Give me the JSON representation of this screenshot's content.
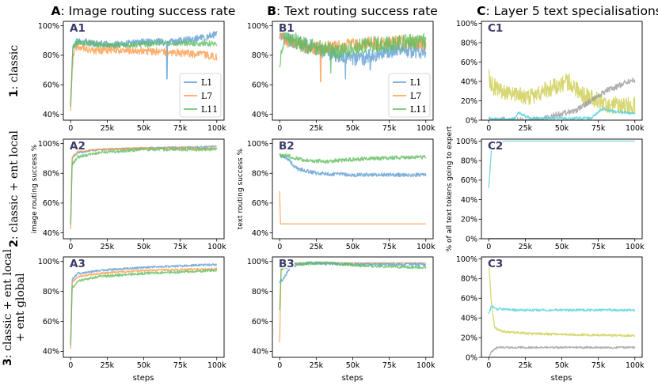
{
  "column_titles": [
    {
      "letter": "A",
      "text": ": Image routing success rate"
    },
    {
      "letter": "B",
      "text": ": Text routing success rate"
    },
    {
      "letter": "C",
      "text": ": Layer 5 text specialisations"
    }
  ],
  "row_labels": [
    {
      "num": "1",
      "lines": [
        ": classic"
      ]
    },
    {
      "num": "2",
      "lines": [
        ": classic + ent local"
      ]
    },
    {
      "num": "3",
      "lines": [
        ": classic + ent local",
        "+ ent global"
      ]
    }
  ],
  "axis_labels": {
    "A_ylabel": "image routing success %",
    "B_ylabel": "text routing success %",
    "C_ylabel": "% of all text tokens going to expert",
    "xlabel": "steps"
  },
  "colors": {
    "L1": "#5b9bd0",
    "L7": "#ff9a45",
    "L11": "#5cbd5c",
    "cyan": "#4fd0dc",
    "olive": "#cccc4a",
    "gray": "#9a9a9a"
  },
  "chart_data": [
    {
      "panel": "A1",
      "type": "line",
      "ylim": [
        36,
        103
      ],
      "yticks": [
        "40%",
        "60%",
        "80%",
        "100%"
      ],
      "xticks": [
        "0",
        "25k",
        "50k",
        "75k",
        "100k"
      ],
      "xlim": [
        0,
        100000
      ],
      "legend": [
        "L1",
        "L7",
        "L11"
      ],
      "legend_position": "lower-right",
      "series": [
        {
          "name": "L1",
          "color": "L1",
          "noise": 2.4,
          "points": [
            [
              0,
              48
            ],
            [
              1500,
              86
            ],
            [
              5000,
              90
            ],
            [
              15000,
              88
            ],
            [
              30000,
              87
            ],
            [
              50000,
              89
            ],
            [
              70000,
              89
            ],
            [
              85000,
              91
            ],
            [
              100000,
              94
            ]
          ],
          "dips": [
            [
              66000,
              64
            ]
          ]
        },
        {
          "name": "L7",
          "color": "L7",
          "noise": 2.6,
          "points": [
            [
              0,
              44
            ],
            [
              1500,
              80
            ],
            [
              5000,
              86
            ],
            [
              15000,
              83
            ],
            [
              30000,
              84
            ],
            [
              50000,
              83
            ],
            [
              70000,
              82
            ],
            [
              85000,
              81
            ],
            [
              100000,
              79
            ]
          ],
          "dips": [
            [
              1200,
              72
            ]
          ]
        },
        {
          "name": "L11",
          "color": "L11",
          "noise": 1.8,
          "points": [
            [
              0,
              46
            ],
            [
              1500,
              86
            ],
            [
              5000,
              89
            ],
            [
              20000,
              87
            ],
            [
              40000,
              87
            ],
            [
              60000,
              88
            ],
            [
              80000,
              88
            ],
            [
              100000,
              88
            ]
          ],
          "dips": []
        }
      ]
    },
    {
      "panel": "B1",
      "type": "line",
      "ylim": [
        36,
        103
      ],
      "yticks": [
        "40%",
        "60%",
        "80%",
        "100%"
      ],
      "xticks": [
        "0",
        "25k",
        "50k",
        "75k",
        "100k"
      ],
      "xlim": [
        0,
        100000
      ],
      "legend": [
        "L1",
        "L7",
        "L11"
      ],
      "legend_position": "lower-right",
      "series": [
        {
          "name": "L1",
          "color": "L1",
          "noise": 5,
          "points": [
            [
              0,
              96
            ],
            [
              5000,
              91
            ],
            [
              20000,
              86
            ],
            [
              40000,
              80
            ],
            [
              55000,
              77
            ],
            [
              70000,
              82
            ],
            [
              85000,
              84
            ],
            [
              100000,
              82
            ]
          ],
          "dips": [
            [
              45000,
              64
            ],
            [
              62000,
              70
            ]
          ]
        },
        {
          "name": "L7",
          "color": "L7",
          "noise": 4.5,
          "points": [
            [
              0,
              95
            ],
            [
              5000,
              90
            ],
            [
              20000,
              85
            ],
            [
              40000,
              86
            ],
            [
              60000,
              88
            ],
            [
              80000,
              89
            ],
            [
              100000,
              88
            ]
          ],
          "dips": [
            [
              28000,
              62
            ]
          ]
        },
        {
          "name": "L11",
          "color": "L11",
          "noise": 5.5,
          "points": [
            [
              0,
              76
            ],
            [
              3000,
              93
            ],
            [
              20000,
              86
            ],
            [
              40000,
              83
            ],
            [
              60000,
              87
            ],
            [
              80000,
              88
            ],
            [
              100000,
              90
            ]
          ],
          "dips": [
            [
              35000,
              68
            ]
          ]
        }
      ]
    },
    {
      "panel": "C1",
      "type": "line",
      "ylim": [
        0,
        102
      ],
      "yticks": [
        "0%",
        "20%",
        "40%",
        "60%",
        "80%",
        "100%"
      ],
      "xticks": [
        "0",
        "25k",
        "50k",
        "75k",
        "100k"
      ],
      "xlim": [
        0,
        100000
      ],
      "series": [
        {
          "color": "olive",
          "noise": 9,
          "points": [
            [
              0,
              45
            ],
            [
              3000,
              35
            ],
            [
              15000,
              25
            ],
            [
              30000,
              25
            ],
            [
              45000,
              35
            ],
            [
              55000,
              40
            ],
            [
              65000,
              25
            ],
            [
              75000,
              20
            ],
            [
              85000,
              15
            ],
            [
              100000,
              15
            ]
          ],
          "dips": []
        },
        {
          "color": "gray",
          "noise": 3,
          "points": [
            [
              0,
              0
            ],
            [
              35000,
              0
            ],
            [
              45000,
              5
            ],
            [
              60000,
              10
            ],
            [
              70000,
              20
            ],
            [
              80000,
              30
            ],
            [
              88000,
              35
            ],
            [
              95000,
              40
            ],
            [
              100000,
              41
            ]
          ],
          "dips": []
        },
        {
          "color": "cyan",
          "noise": 1.5,
          "points": [
            [
              0,
              1
            ],
            [
              18000,
              1
            ],
            [
              20000,
              8
            ],
            [
              25000,
              4
            ],
            [
              30000,
              2
            ],
            [
              70000,
              2
            ],
            [
              78000,
              12
            ],
            [
              85000,
              9
            ],
            [
              100000,
              7
            ]
          ],
          "dips": []
        }
      ]
    },
    {
      "panel": "A2",
      "type": "line",
      "ylim": [
        36,
        103
      ],
      "yticks": [
        "40%",
        "60%",
        "80%",
        "100%"
      ],
      "xticks": [
        "0",
        "25k",
        "50k",
        "75k",
        "100k"
      ],
      "xlim": [
        0,
        100000
      ],
      "series": [
        {
          "name": "L1",
          "color": "L1",
          "noise": 0.6,
          "points": [
            [
              0,
              45
            ],
            [
              1000,
              90
            ],
            [
              5000,
              94
            ],
            [
              20000,
              96
            ],
            [
              50000,
              97
            ],
            [
              100000,
              98
            ]
          ],
          "dips": []
        },
        {
          "name": "L7",
          "color": "L7",
          "noise": 0.6,
          "points": [
            [
              0,
              42
            ],
            [
              1000,
              91
            ],
            [
              5000,
              95
            ],
            [
              20000,
              96
            ],
            [
              50000,
              97
            ],
            [
              100000,
              97
            ]
          ],
          "dips": []
        },
        {
          "name": "L11",
          "color": "L11",
          "noise": 1,
          "points": [
            [
              0,
              45
            ],
            [
              1000,
              86
            ],
            [
              5000,
              91
            ],
            [
              20000,
              94
            ],
            [
              50000,
              96
            ],
            [
              100000,
              96
            ]
          ],
          "dips": []
        }
      ]
    },
    {
      "panel": "B2",
      "type": "line",
      "ylim": [
        36,
        103
      ],
      "yticks": [
        "40%",
        "60%",
        "80%",
        "100%"
      ],
      "xticks": [
        "0",
        "25k",
        "50k",
        "75k",
        "100k"
      ],
      "xlim": [
        0,
        100000
      ],
      "series": [
        {
          "name": "L7",
          "color": "L7",
          "noise": 0,
          "points": [
            [
              0,
              68
            ],
            [
              500,
              46
            ],
            [
              1000,
              46
            ],
            [
              100000,
              46
            ]
          ],
          "dips": []
        },
        {
          "name": "L1",
          "color": "L1",
          "noise": 1.3,
          "points": [
            [
              0,
              92
            ],
            [
              5000,
              90
            ],
            [
              12000,
              83
            ],
            [
              25000,
              80
            ],
            [
              50000,
              79
            ],
            [
              75000,
              79
            ],
            [
              100000,
              79
            ]
          ],
          "dips": []
        },
        {
          "name": "L11",
          "color": "L11",
          "noise": 1.3,
          "points": [
            [
              0,
              92
            ],
            [
              5000,
              92
            ],
            [
              15000,
              89
            ],
            [
              30000,
              88
            ],
            [
              60000,
              90
            ],
            [
              100000,
              91
            ]
          ],
          "dips": []
        }
      ]
    },
    {
      "panel": "C2",
      "type": "line",
      "ylim": [
        0,
        102
      ],
      "yticks": [
        "0%",
        "20%",
        "40%",
        "60%",
        "80%",
        "100%"
      ],
      "xticks": [
        "0",
        "25k",
        "50k",
        "75k",
        "100k"
      ],
      "xlim": [
        0,
        100000
      ],
      "series": [
        {
          "color": "cyan",
          "noise": 0,
          "points": [
            [
              0,
              52
            ],
            [
              2000,
              95
            ],
            [
              3000,
              100
            ],
            [
              100000,
              100
            ]
          ],
          "dips": []
        },
        {
          "color": "gray",
          "noise": 0,
          "points": [
            [
              0,
              0
            ],
            [
              100000,
              0
            ]
          ],
          "dips": []
        }
      ]
    },
    {
      "panel": "A3",
      "type": "line",
      "ylim": [
        36,
        103
      ],
      "yticks": [
        "40%",
        "60%",
        "80%",
        "100%"
      ],
      "xticks": [
        "0",
        "25k",
        "50k",
        "75k",
        "100k"
      ],
      "xlim": [
        0,
        100000
      ],
      "series": [
        {
          "name": "L1",
          "color": "L1",
          "noise": 0.7,
          "points": [
            [
              0,
              45
            ],
            [
              1000,
              88
            ],
            [
              5000,
              92
            ],
            [
              20000,
              94
            ],
            [
              50000,
              96
            ],
            [
              100000,
              98
            ]
          ],
          "dips": []
        },
        {
          "name": "L7",
          "color": "L7",
          "noise": 0.7,
          "points": [
            [
              0,
              42
            ],
            [
              1000,
              86
            ],
            [
              5000,
              90
            ],
            [
              20000,
              92
            ],
            [
              50000,
              94
            ],
            [
              100000,
              95
            ]
          ],
          "dips": []
        },
        {
          "name": "L11",
          "color": "L11",
          "noise": 0.9,
          "points": [
            [
              0,
              44
            ],
            [
              1000,
              82
            ],
            [
              5000,
              87
            ],
            [
              20000,
              90
            ],
            [
              50000,
              92
            ],
            [
              100000,
              94
            ]
          ],
          "dips": []
        }
      ]
    },
    {
      "panel": "B3",
      "type": "line",
      "ylim": [
        36,
        103
      ],
      "yticks": [
        "40%",
        "60%",
        "80%",
        "100%"
      ],
      "xticks": [
        "0",
        "25k",
        "50k",
        "75k",
        "100k"
      ],
      "xlim": [
        0,
        100000
      ],
      "series": [
        {
          "name": "L7",
          "color": "L7",
          "noise": 0.2,
          "points": [
            [
              0,
              46
            ],
            [
              1000,
              99
            ],
            [
              100000,
              99
            ]
          ],
          "dips": []
        },
        {
          "name": "L1",
          "color": "L1",
          "noise": 1,
          "points": [
            [
              0,
              86
            ],
            [
              2000,
              88
            ],
            [
              8000,
              97
            ],
            [
              20000,
              99
            ],
            [
              50000,
              98
            ],
            [
              100000,
              98
            ]
          ],
          "dips": []
        },
        {
          "name": "L11",
          "color": "L11",
          "noise": 1,
          "points": [
            [
              0,
              68
            ],
            [
              1000,
              95
            ],
            [
              10000,
              98
            ],
            [
              30000,
              99
            ],
            [
              60000,
              97
            ],
            [
              100000,
              96
            ]
          ],
          "dips": []
        }
      ]
    },
    {
      "panel": "C3",
      "type": "line",
      "ylim": [
        0,
        102
      ],
      "yticks": [
        "0%",
        "20%",
        "40%",
        "60%",
        "80%",
        "100%"
      ],
      "xticks": [
        "0",
        "25k",
        "50k",
        "75k",
        "100k"
      ],
      "xlim": [
        0,
        100000
      ],
      "series": [
        {
          "color": "olive",
          "noise": 1.2,
          "points": [
            [
              0,
              98
            ],
            [
              1500,
              60
            ],
            [
              4000,
              30
            ],
            [
              10000,
              26
            ],
            [
              30000,
              24
            ],
            [
              60000,
              23
            ],
            [
              100000,
              22
            ]
          ],
          "dips": []
        },
        {
          "color": "cyan",
          "noise": 1.2,
          "points": [
            [
              0,
              45
            ],
            [
              2000,
              52
            ],
            [
              5000,
              49
            ],
            [
              20000,
              48
            ],
            [
              60000,
              48
            ],
            [
              100000,
              48
            ]
          ],
          "dips": []
        },
        {
          "color": "gray",
          "noise": 1,
          "points": [
            [
              0,
              0
            ],
            [
              2000,
              6
            ],
            [
              6000,
              10
            ],
            [
              30000,
              10
            ],
            [
              100000,
              10
            ]
          ],
          "dips": []
        }
      ]
    }
  ]
}
